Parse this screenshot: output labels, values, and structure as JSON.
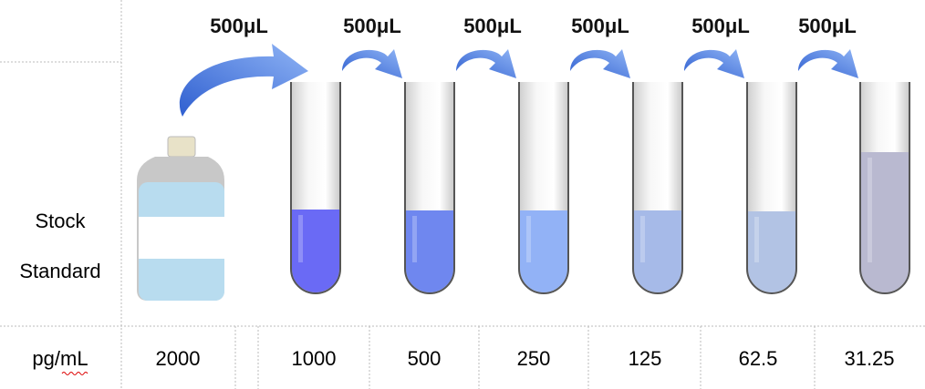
{
  "transfers": [
    "500μL",
    "500μL",
    "500μL",
    "500μL",
    "500μL",
    "500μL"
  ],
  "row_label": [
    "Stock",
    "Standard"
  ],
  "unit": "pg/mL",
  "concentrations": [
    "2000",
    "1000",
    "500",
    "250",
    "125",
    "62.5",
    "31.25"
  ]
}
